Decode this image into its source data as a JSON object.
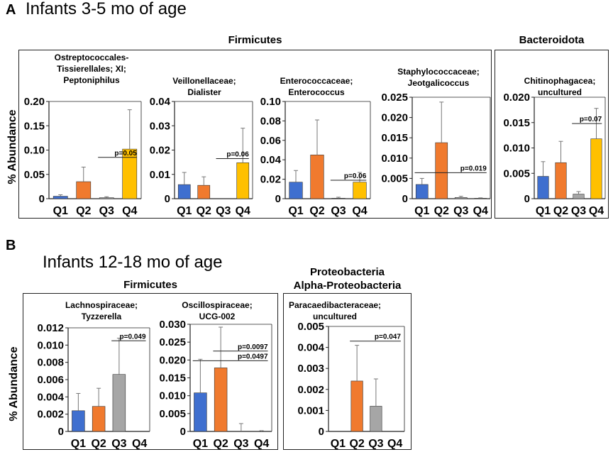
{
  "panel_a": {
    "letter": "A",
    "title": "Infants 3-5 mo of age",
    "group_firmicutes": "Firmicutes",
    "group_bacteroidota": "Bacteroidota",
    "ylabel": "% Abundance"
  },
  "panel_b": {
    "letter": "B",
    "title": "Infants 12-18 mo of age",
    "group_firmicutes": "Firmicutes",
    "group_proteo_line1": "Proteobacteria",
    "group_proteo_line2": "Alpha-Proteobacteria",
    "ylabel": "% Abundance"
  },
  "colors": {
    "Q1": "#3f6fcf",
    "Q2": "#f07a2e",
    "Q3": "#a6a6a6",
    "Q4": "#ffc000"
  },
  "chart_data": [
    {
      "type": "bar",
      "panel": "A",
      "title_lines": [
        "Ostreptococcales-",
        "Tissierellales; XI;",
        "Peptoniphilus"
      ],
      "categories": [
        "Q1",
        "Q2",
        "Q3",
        "Q4"
      ],
      "values": [
        0.005,
        0.035,
        0.002,
        0.102
      ],
      "errors": [
        0.008,
        0.065,
        0.004,
        0.183
      ],
      "ylim": [
        0,
        0.2
      ],
      "ticks": [
        0,
        0.05,
        0.1,
        0.15,
        0.2
      ],
      "tick_labels": [
        "0",
        "0.05",
        "0.10",
        "0.15",
        "0.20"
      ],
      "ylabel": "% Abundance",
      "annotations": [
        {
          "text": "p=0.05",
          "from": "Q3",
          "to": "Q4",
          "y": 0.085
        }
      ]
    },
    {
      "type": "bar",
      "panel": "A",
      "title_lines": [
        "Veillonellaceae;",
        "Dialister"
      ],
      "categories": [
        "Q1",
        "Q2",
        "Q3",
        "Q4"
      ],
      "values": [
        0.0058,
        0.0055,
        0.0,
        0.0148
      ],
      "errors": [
        0.0108,
        0.009,
        0.0,
        0.029
      ],
      "ylim": [
        0,
        0.04
      ],
      "ticks": [
        0,
        0.01,
        0.02,
        0.03,
        0.04
      ],
      "tick_labels": [
        "0",
        "0.01",
        "0.02",
        "0.03",
        "0.04"
      ],
      "annotations": [
        {
          "text": "p=0.06",
          "from": "Q3",
          "to": "Q4",
          "y": 0.0165
        }
      ]
    },
    {
      "type": "bar",
      "panel": "A",
      "title_lines": [
        "Enterococcaceae;",
        "Enterococcus"
      ],
      "categories": [
        "Q1",
        "Q2",
        "Q3",
        "Q4"
      ],
      "values": [
        0.017,
        0.045,
        0.0005,
        0.017
      ],
      "errors": [
        0.029,
        0.081,
        0.0015,
        0.027
      ],
      "ylim": [
        0,
        0.1
      ],
      "ticks": [
        0,
        0.02,
        0.04,
        0.06,
        0.08,
        0.1
      ],
      "tick_labels": [
        "0",
        "0.02",
        "0.04",
        "0.06",
        "0.08",
        "0.10"
      ],
      "annotations": [
        {
          "text": "p=0.06",
          "from": "Q3",
          "to": "Q4",
          "y": 0.019
        }
      ]
    },
    {
      "type": "bar",
      "panel": "A",
      "title_lines": [
        "Staphylococcaceae;",
        "Jeotgalicoccus"
      ],
      "categories": [
        "Q1",
        "Q2",
        "Q3",
        "Q4"
      ],
      "values": [
        0.0035,
        0.0138,
        0.0003,
        0.0001
      ],
      "errors": [
        0.005,
        0.0238,
        0.0006,
        0.0002
      ],
      "ylim": [
        0,
        0.025
      ],
      "ticks": [
        0,
        0.005,
        0.01,
        0.015,
        0.02,
        0.025
      ],
      "tick_labels": [
        "0",
        "0.005",
        "0.010",
        "0.015",
        "0.020",
        "0.025"
      ],
      "annotations": [
        {
          "text": "p=0.019",
          "from": "Q1",
          "to": "Q4",
          "y": 0.0064
        }
      ]
    },
    {
      "type": "bar",
      "panel": "A",
      "title_lines": [
        "Chitinophagacea;",
        "uncultured"
      ],
      "categories": [
        "Q1",
        "Q2",
        "Q3",
        "Q4"
      ],
      "values": [
        0.0044,
        0.0071,
        0.0009,
        0.0118
      ],
      "errors": [
        0.0073,
        0.0113,
        0.0014,
        0.0178
      ],
      "ylim": [
        0,
        0.02
      ],
      "ticks": [
        0,
        0.005,
        0.01,
        0.015,
        0.02
      ],
      "tick_labels": [
        "0",
        "0.005",
        "0.010",
        "0.015",
        "0.020"
      ],
      "annotations": [
        {
          "text": "p=0.07",
          "from": "Q3",
          "to": "Q4",
          "y": 0.0148
        }
      ]
    },
    {
      "type": "bar",
      "panel": "B",
      "title_lines": [
        "Lachnospiraceae;",
        "Tyzzerella"
      ],
      "categories": [
        "Q1",
        "Q2",
        "Q3",
        "Q4"
      ],
      "values": [
        0.0024,
        0.0029,
        0.0066,
        0.0
      ],
      "errors": [
        0.0044,
        0.005,
        0.0108,
        0.0
      ],
      "ylim": [
        0,
        0.012
      ],
      "ticks": [
        0,
        0.002,
        0.004,
        0.006,
        0.008,
        0.01,
        0.012
      ],
      "tick_labels": [
        "0",
        "0.002",
        "0.004",
        "0.006",
        "0.008",
        "0.010",
        "0.012"
      ],
      "ylabel": "% Abundance",
      "annotations": [
        {
          "text": "p=0.049",
          "from": "Q3",
          "to": "Q4",
          "y": 0.0105
        }
      ]
    },
    {
      "type": "bar",
      "panel": "B",
      "title_lines": [
        "Oscillospiraceae;",
        "UCG-002"
      ],
      "categories": [
        "Q1",
        "Q2",
        "Q3",
        "Q4"
      ],
      "values": [
        0.0108,
        0.0178,
        0.0,
        0.0
      ],
      "errors": [
        0.0202,
        0.0292,
        0.0022,
        0.0002
      ],
      "ylim": [
        0,
        0.03
      ],
      "ticks": [
        0,
        0.005,
        0.01,
        0.015,
        0.02,
        0.025,
        0.03
      ],
      "tick_labels": [
        "0",
        "0.005",
        "0.010",
        "0.015",
        "0.020",
        "0.025",
        "0.030"
      ],
      "annotations": [
        {
          "text": "p=0.0097",
          "from": "Q2",
          "to": "Q4",
          "y": 0.0225
        },
        {
          "text": "p=0.0497",
          "from": "Q1",
          "to": "Q4",
          "y": 0.0198
        }
      ]
    },
    {
      "type": "bar",
      "panel": "B",
      "title_lines": [
        "Paracaedibacteraceae;",
        "uncultured"
      ],
      "categories": [
        "Q1",
        "Q2",
        "Q3",
        "Q4"
      ],
      "values": [
        0.0,
        0.0024,
        0.0012,
        0.0
      ],
      "errors": [
        0.0,
        0.0041,
        0.0025,
        0.0
      ],
      "ylim": [
        0,
        0.005
      ],
      "ticks": [
        0,
        0.001,
        0.002,
        0.003,
        0.004,
        0.005
      ],
      "tick_labels": [
        "0",
        "0.001",
        "0.002",
        "0.003",
        "0.004",
        "0.005"
      ],
      "annotations": [
        {
          "text": "p=0.047",
          "from": "Q2",
          "to": "Q4",
          "y": 0.0043
        }
      ]
    }
  ]
}
